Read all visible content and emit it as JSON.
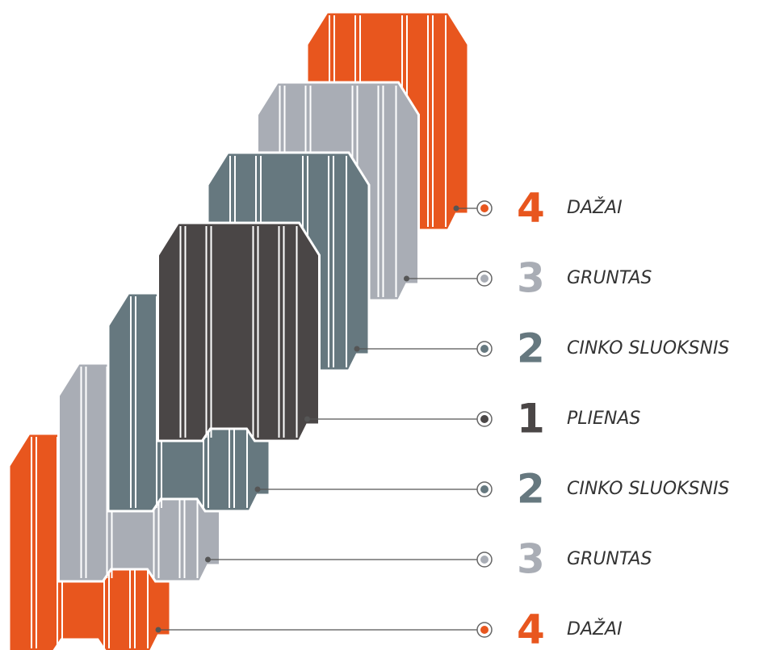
{
  "layers": [
    {
      "number": 4,
      "label": "DAŽAI",
      "color": "#e8561e"
    },
    {
      "number": 3,
      "label": "GRUNTAS",
      "color": "#a9adb5"
    },
    {
      "number": 2,
      "label": "CINKO SLUOKSNIS",
      "color": "#66787f"
    },
    {
      "number": 1,
      "label": "PLIENAS",
      "color": "#4a4646"
    },
    {
      "number": 2,
      "label": "CINKO SLUOKSNIS",
      "color": "#66787f"
    },
    {
      "number": 3,
      "label": "GRUNTAS",
      "color": "#a9adb5"
    },
    {
      "number": 4,
      "label": "DAŽAI",
      "color": "#e8561e"
    }
  ]
}
